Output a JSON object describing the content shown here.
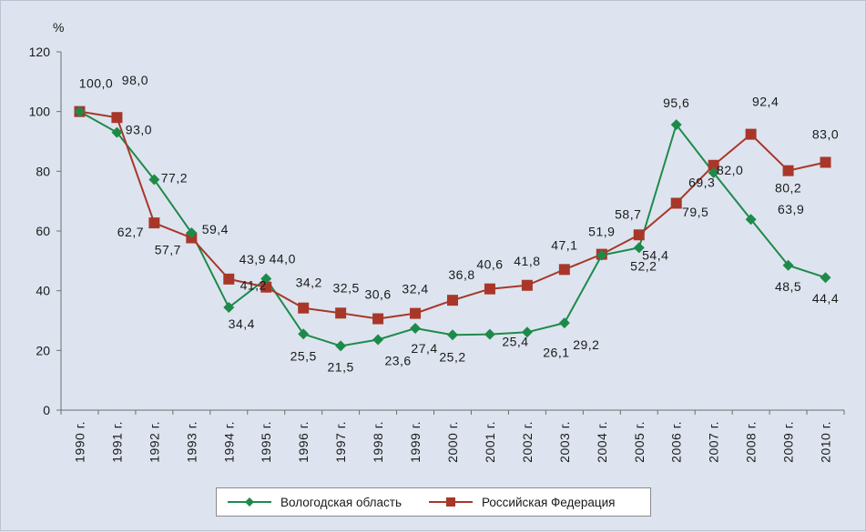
{
  "chart_data": {
    "type": "line",
    "title": "",
    "ylabel": "%",
    "xlabel": "",
    "ylim": [
      0,
      120
    ],
    "yticks": [
      0,
      20,
      40,
      60,
      80,
      100,
      120
    ],
    "categories": [
      "1990 г.",
      "1991 г.",
      "1992 г.",
      "1993 г.",
      "1994 г.",
      "1995 г.",
      "1996 г.",
      "1997 г.",
      "1998 г.",
      "1999 г.",
      "2000 г.",
      "2001 г.",
      "2002 г.",
      "2003 г.",
      "2004 г.",
      "2005 г.",
      "2006 г.",
      "2007 г.",
      "2008 г.",
      "2009 г.",
      "2010 г."
    ],
    "series": [
      {
        "name": "Вологодская область",
        "color": "#1e8a4a",
        "marker": "diamond",
        "values": [
          100.0,
          93.0,
          77.2,
          59.4,
          34.4,
          44.0,
          25.5,
          21.5,
          23.6,
          27.4,
          25.2,
          25.4,
          26.1,
          29.2,
          51.9,
          54.4,
          95.6,
          79.5,
          63.9,
          48.5,
          44.4
        ],
        "labels": [
          "100,0",
          "93,0",
          "77,2",
          "59,4",
          "34,4",
          "44,0",
          "25,5",
          "21,5",
          "23,6",
          "27,4",
          "25,2",
          "25,4",
          "26,1",
          "29,2",
          "51,9",
          "54,4",
          "95,6",
          "79,5",
          "63,9",
          "48,5",
          "44,4"
        ]
      },
      {
        "name": "Российская Федерация",
        "color": "#a8372a",
        "marker": "square",
        "values": [
          100.0,
          98.0,
          62.7,
          57.7,
          43.9,
          41.2,
          34.2,
          32.5,
          30.6,
          32.4,
          36.8,
          40.6,
          41.8,
          47.1,
          52.2,
          58.7,
          69.3,
          82.0,
          92.4,
          80.2,
          83.0
        ],
        "labels": [
          "100,0",
          "98,0",
          "62,7",
          "57,7",
          "43,9",
          "41,2",
          "34,2",
          "32,5",
          "30,6",
          "32,4",
          "36,8",
          "40,6",
          "41,8",
          "47,1",
          "52,2",
          "58,7",
          "69,3",
          "82,0",
          "92,4",
          "80,2",
          "83,0"
        ]
      }
    ],
    "legend": [
      "Вологодская область",
      "Российская Федерация"
    ],
    "legend_position": "bottom",
    "grid": false
  }
}
